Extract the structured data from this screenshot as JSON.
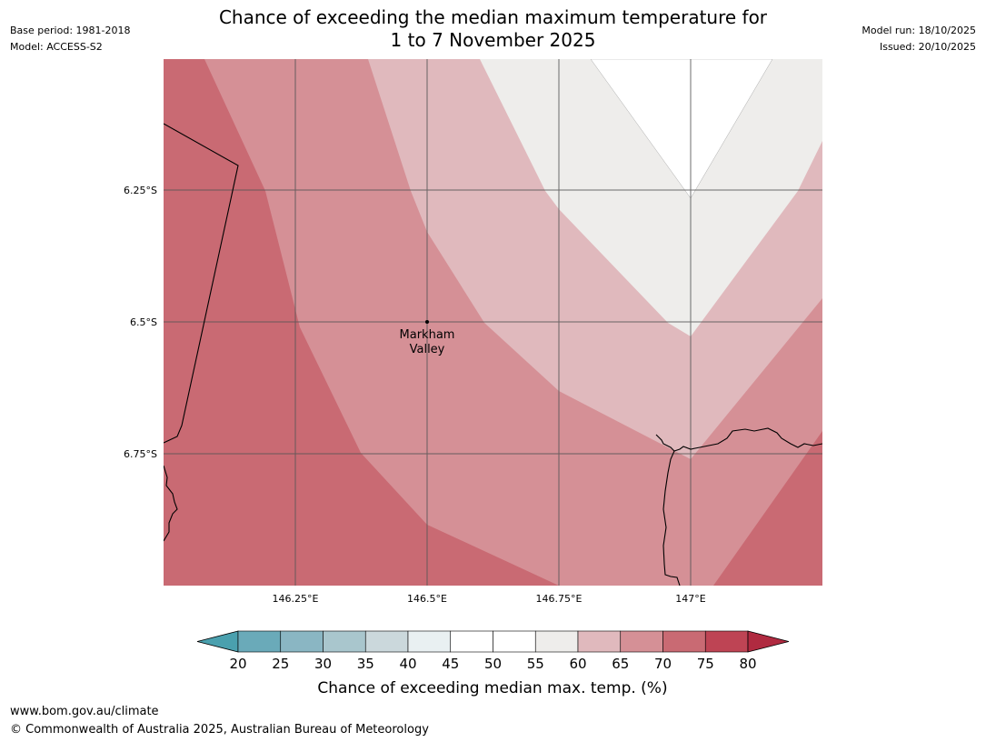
{
  "header": {
    "title_line1": "Chance of exceeding the median maximum temperature for",
    "title_line2": "1 to 7 November 2025",
    "base_period": "Base period: 1981-2018",
    "model": "Model: ACCESS-S2",
    "model_run": "Model run: 18/10/2025",
    "issued": "Issued: 20/10/2025"
  },
  "map": {
    "lat_labels": [
      "6.25°S",
      "6.5°S",
      "6.75°S"
    ],
    "lon_labels": [
      "146.25°E",
      "146.5°E",
      "146.75°E",
      "147°E"
    ],
    "place": {
      "name_line1": "Markham",
      "name_line2": "Valley"
    },
    "lat_range": [
      -6.0,
      -7.0
    ],
    "lon_range": [
      146.0,
      147.25
    ]
  },
  "colorbar": {
    "title": "Chance of exceeding median max. temp. (%)",
    "ticks": [
      "20",
      "25",
      "30",
      "35",
      "40",
      "45",
      "50",
      "55",
      "60",
      "65",
      "70",
      "75",
      "80"
    ],
    "colors": [
      "#4aa0ae",
      "#6aaab9",
      "#8ab6c3",
      "#a9c6cd",
      "#cbd8dc",
      "#e9f0f2",
      "#ffffff",
      "#ffffff",
      "#eeedeb",
      "#e0b9bd",
      "#d59096",
      "#c96a73",
      "#be4454",
      "#b02a40"
    ]
  },
  "footer": {
    "url": "www.bom.gov.au/climate",
    "copyright": "© Commonwealth of Australia 2025, Australian Bureau of Meteorology"
  }
}
